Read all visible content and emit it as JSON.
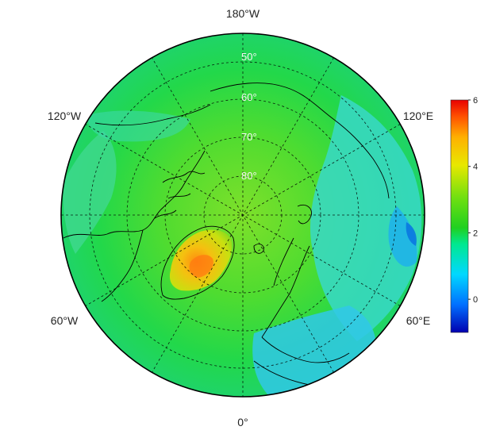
{
  "map": {
    "projection": "north-polar-stereographic",
    "center_lat": 90,
    "boundary_lat": 40,
    "longitude_labels": [
      {
        "lon": 180,
        "text": "180°W"
      },
      {
        "lon": 240,
        "text": "120°W"
      },
      {
        "lon": 300,
        "text": "60°W"
      },
      {
        "lon": 0,
        "text": "0°"
      },
      {
        "lon": 60,
        "text": "60°E"
      },
      {
        "lon": 120,
        "text": "120°E"
      }
    ],
    "latitude_labels": [
      {
        "lat": 50,
        "text": "50°"
      },
      {
        "lat": 60,
        "text": "60°"
      },
      {
        "lat": 70,
        "text": "70°"
      },
      {
        "lat": 80,
        "text": "80°"
      }
    ],
    "meridians_every_deg": 30,
    "parallels": [
      50,
      60,
      70,
      80
    ]
  },
  "colorbar": {
    "min": -1,
    "max": 6,
    "ticks": [
      "6",
      "4",
      "2",
      "0"
    ],
    "tick_values": [
      6,
      4,
      2,
      0
    ],
    "colormap": [
      "#0000b0",
      "#0070ff",
      "#00d8ff",
      "#00e890",
      "#20d020",
      "#70e010",
      "#e8e800",
      "#ffb000",
      "#ff5000",
      "#e80000"
    ]
  },
  "field_colors": {
    "ocean_background": "#22d84a",
    "arctic_center": "#7ee02a",
    "greenland_ice": "#f0d010",
    "greenland_peak": "#ff8a10",
    "siberia_low": "#38d8c8",
    "canada_low": "#40d890",
    "europe_low": "#30c8e8",
    "coast_line": "#000000"
  }
}
